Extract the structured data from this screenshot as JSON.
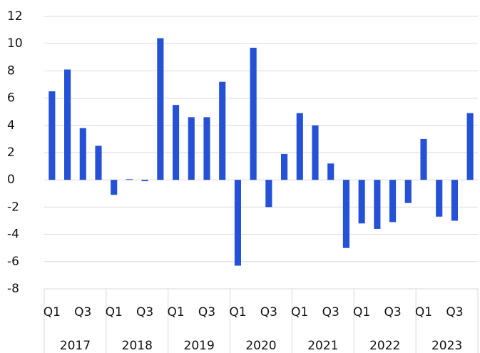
{
  "chart_data": {
    "type": "bar",
    "categories": [
      "Q1",
      null,
      "Q3",
      null,
      "Q1",
      null,
      "Q3",
      null,
      "Q1",
      null,
      "Q3",
      null,
      "Q1",
      null,
      "Q3",
      null,
      "Q1",
      null,
      "Q3",
      null,
      "Q1",
      null,
      "Q3",
      null,
      "Q1",
      null,
      "Q3",
      null
    ],
    "groups": [
      "2017",
      "2018",
      "2019",
      "2020",
      "2021",
      "2022",
      "2023"
    ],
    "values": [
      6.5,
      8.1,
      3.8,
      2.5,
      -1.1,
      0.05,
      -0.1,
      10.4,
      5.5,
      4.6,
      4.6,
      7.2,
      -6.3,
      9.7,
      -2.0,
      1.9,
      4.9,
      4.0,
      1.2,
      -5.0,
      -3.2,
      -3.6,
      -3.1,
      -1.7,
      3.0,
      -2.7,
      -3.0,
      4.9
    ],
    "color": "#2451d6",
    "ylim": [
      -8,
      12
    ],
    "yticks": [
      -8,
      -6,
      -4,
      -2,
      0,
      2,
      4,
      6,
      8,
      10,
      12
    ],
    "grid": true
  }
}
